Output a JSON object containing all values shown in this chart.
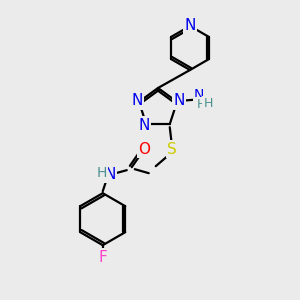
{
  "bg_color": "#ebebeb",
  "atom_colors": {
    "N": "#0000ee",
    "O": "#ff0000",
    "S": "#cccc00",
    "F": "#ff44cc",
    "C": "#000000",
    "H": "#4a9090"
  },
  "bond_color": "#000000",
  "bond_lw": 1.6,
  "fig_size": [
    3.0,
    3.0
  ],
  "dpi": 100,
  "fs": 10
}
